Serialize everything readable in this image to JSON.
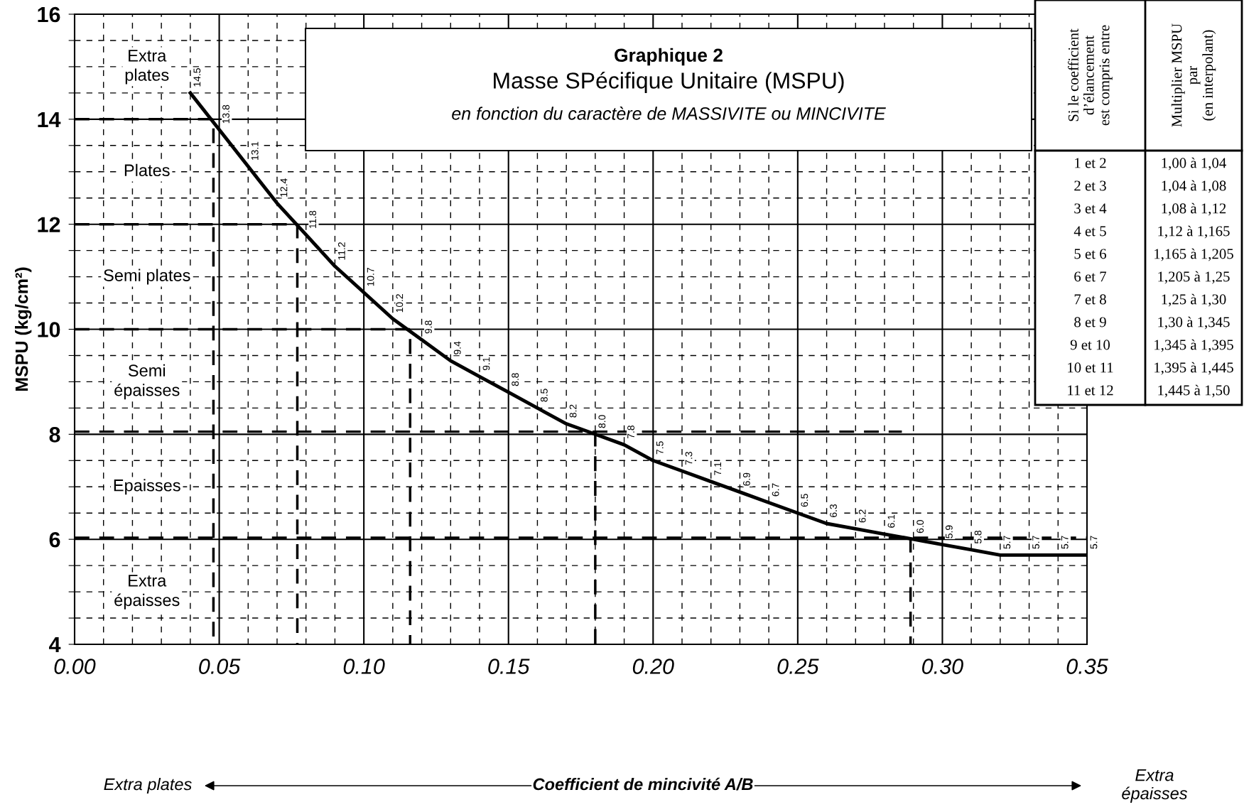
{
  "chart_data": {
    "type": "line",
    "title": "Graphique 2",
    "subtitle": "Masse SPécifique Unitaire (MSPU)",
    "ylabel": "MSPU (kg/cm²)",
    "xlim": [
      0,
      0.35
    ],
    "ylim": [
      4,
      16
    ],
    "xticks": [
      {
        "value": 0.0,
        "label": "0.00"
      },
      {
        "value": 0.01,
        "label": null
      },
      {
        "value": 0.02,
        "label": null
      },
      {
        "value": 0.03,
        "label": null
      },
      {
        "value": 0.04,
        "label": null
      },
      {
        "value": 0.05,
        "label": "0.05"
      },
      {
        "value": 0.06,
        "label": null
      },
      {
        "value": 0.07,
        "label": null
      },
      {
        "value": 0.08,
        "label": null
      },
      {
        "value": 0.09,
        "label": null
      },
      {
        "value": 0.1,
        "label": "0.10"
      },
      {
        "value": 0.11,
        "label": null
      },
      {
        "value": 0.12,
        "label": null
      },
      {
        "value": 0.13,
        "label": null
      },
      {
        "value": 0.14,
        "label": null
      },
      {
        "value": 0.15,
        "label": "0.15"
      },
      {
        "value": 0.16,
        "label": null
      },
      {
        "value": 0.17,
        "label": null
      },
      {
        "value": 0.18,
        "label": null
      },
      {
        "value": 0.19,
        "label": null
      },
      {
        "value": 0.2,
        "label": "0.20"
      },
      {
        "value": 0.21,
        "label": null
      },
      {
        "value": 0.22,
        "label": null
      },
      {
        "value": 0.23,
        "label": null
      },
      {
        "value": 0.24,
        "label": null
      },
      {
        "value": 0.25,
        "label": "0.25"
      },
      {
        "value": 0.26,
        "label": null
      },
      {
        "value": 0.27,
        "label": null
      },
      {
        "value": 0.28,
        "label": null
      },
      {
        "value": 0.29,
        "label": null
      },
      {
        "value": 0.3,
        "label": "0.30"
      },
      {
        "value": 0.31,
        "label": null
      },
      {
        "value": 0.32,
        "label": null
      },
      {
        "value": 0.33,
        "label": null
      },
      {
        "value": 0.34,
        "label": null
      },
      {
        "value": 0.35,
        "label": "0.35"
      }
    ],
    "yticks": [
      4,
      {
        "value": 4.5,
        "label": null
      },
      {
        "value": 5,
        "label": null
      },
      {
        "value": 5.5,
        "label": null
      },
      6,
      {
        "value": 6.5,
        "label": null
      },
      {
        "value": 7,
        "label": null
      },
      {
        "value": 7.5,
        "label": null
      },
      8,
      {
        "value": 8.5,
        "label": null
      },
      {
        "value": 9,
        "label": null
      },
      {
        "value": 9.5,
        "label": null
      },
      10,
      {
        "value": 10.5,
        "label": null
      },
      {
        "value": 11,
        "label": null
      },
      {
        "value": 11.5,
        "label": null
      },
      12,
      {
        "value": 12.5,
        "label": null
      },
      {
        "value": 13,
        "label": null
      },
      {
        "value": 13.5,
        "label": null
      },
      14,
      {
        "value": 14.5,
        "label": null
      },
      {
        "value": 15,
        "label": null
      },
      {
        "value": 15.5,
        "label": null
      },
      16
    ],
    "grid": true,
    "series": [
      {
        "color": "#000000",
        "line_style": "solid",
        "value_labels": [
          "14.5",
          "13.8",
          "13.1",
          "12.4",
          "11.8",
          "11.2",
          "10.7",
          "10.2",
          "9.8",
          "9.4",
          "9.1",
          "8.8",
          "8.5",
          "8.2",
          "8.0",
          "7.8",
          "7.5",
          "7.3",
          "7.1",
          "6.9",
          "6.7",
          "6.5",
          "6.3",
          "6.2",
          "6.1",
          "6.0",
          "5.9",
          "5.8",
          "5.7",
          "5.7",
          "5.7",
          "5.7"
        ],
        "x": [
          0.04,
          0.05,
          0.06,
          0.07,
          0.08,
          0.09,
          0.1,
          0.11,
          0.12,
          0.13,
          0.14,
          0.15,
          0.16,
          0.17,
          0.18,
          0.19,
          0.2,
          0.21,
          0.22,
          0.23,
          0.24,
          0.25,
          0.26,
          0.27,
          0.28,
          0.29,
          0.3,
          0.31,
          0.32,
          0.33,
          0.34,
          0.35
        ],
        "values": [
          14.5,
          13.8,
          13.1,
          12.4,
          11.8,
          11.2,
          10.7,
          10.2,
          9.8,
          9.4,
          9.1,
          8.8,
          8.5,
          8.2,
          8.0,
          7.8,
          7.5,
          7.3,
          7.1,
          6.9,
          6.7,
          6.5,
          6.3,
          6.2,
          6.1,
          6.0,
          5.9,
          5.8,
          5.7,
          5.7,
          5.7,
          5.7
        ]
      },
      {
        "color": "#000000",
        "line_style": "dashed",
        "x": [
          0,
          0.048,
          0.048
        ],
        "values": [
          14,
          14,
          4
        ]
      },
      {
        "color": "#000000",
        "line_style": "dashed",
        "x": [
          0,
          0.077,
          0.077
        ],
        "values": [
          12,
          12,
          4
        ]
      },
      {
        "color": "#000000",
        "line_style": "dashed",
        "x": [
          0,
          0.116,
          0.116
        ],
        "values": [
          10,
          10,
          4
        ]
      },
      {
        "color": "#000000",
        "line_style": "dashed",
        "x": [
          0,
          0.286
        ],
        "values": [
          8.05,
          8.05
        ]
      },
      {
        "color": "#000000",
        "line_style": "dashed",
        "x": [
          0.18,
          0.18
        ],
        "values": [
          8.05,
          4
        ]
      },
      {
        "color": "#000000",
        "line_style": "dashed",
        "x": [
          0,
          0.35
        ],
        "values": [
          6.03,
          6.03
        ]
      },
      {
        "color": "#000000",
        "line_style": "dashed",
        "x": [
          0.289,
          0.289
        ],
        "values": [
          6.03,
          4
        ]
      }
    ],
    "annotations": [
      "Extra\nplates",
      "Plates",
      "Semi plates",
      "Semi\népaisses",
      "Epaisses",
      "Extra\népaisses",
      "en fonction du caractère de MASSIVITE ou MINCIVITE",
      "Coefficient de mincivité A/B",
      "Extra plates",
      "Extra\népaisses",
      "Si le coefficient\nd’élancement\nest compris entre",
      "Multiplier MSPU\npar\n(en interpolant)",
      "1 et 2",
      "1,00 à 1,04",
      "2 et 3",
      "1,04 à 1,08",
      "3 et 4",
      "1,08 à 1,12",
      "4 et 5",
      "1,12 à 1,165",
      "5 et 6",
      "1,165 à 1,205",
      "6 et 7",
      "1,205 à 1,25",
      "7 et 8",
      "1,25 à 1,30",
      "8 et 9",
      "1,30 à 1,345",
      "9 et 10",
      "1,345 à 1,395",
      "10 et 11",
      "1,395 à 1,445",
      "11 et 12",
      "1,445 à 1,50"
    ]
  }
}
